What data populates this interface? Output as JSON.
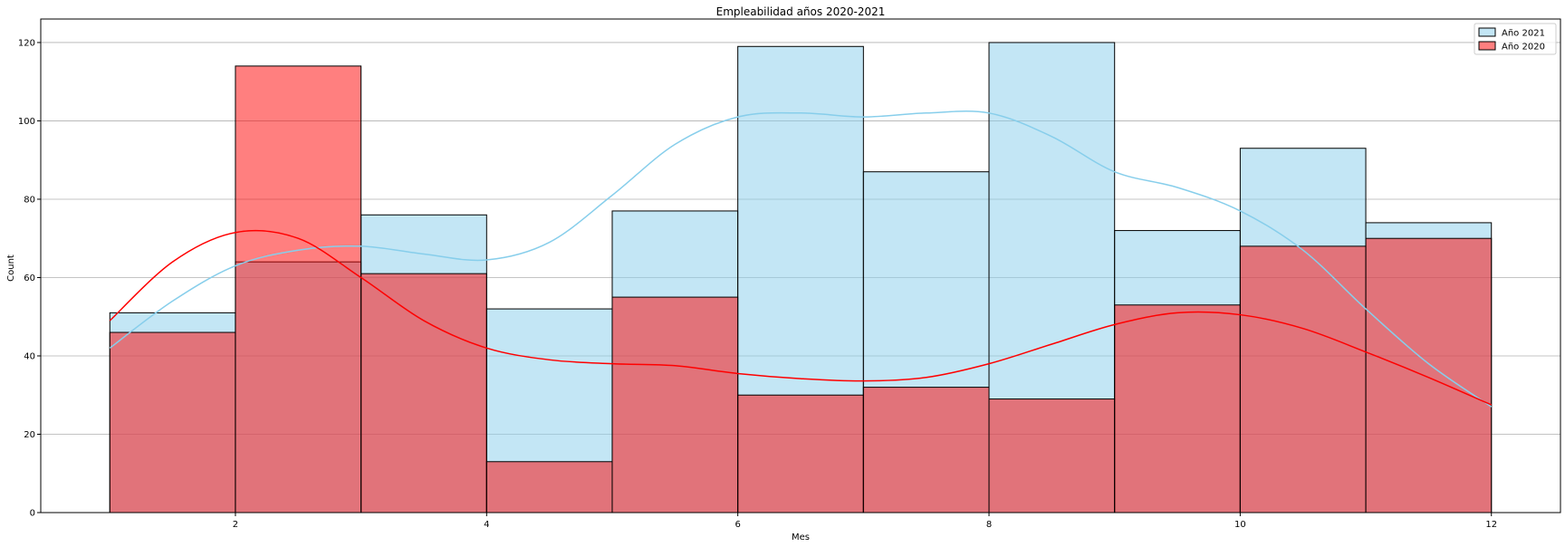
{
  "chart_data": {
    "type": "histogram",
    "title": "Empleabilidad años 2020-2021",
    "xlabel": "Mes",
    "ylabel": "Count",
    "xlim": [
      0.45,
      12.55
    ],
    "ylim": [
      0,
      126
    ],
    "xticks": [
      2,
      4,
      6,
      8,
      10,
      12
    ],
    "yticks": [
      0,
      20,
      40,
      60,
      80,
      100,
      120
    ],
    "grid": "y",
    "legend_position": "top-right",
    "bin_edges": [
      1,
      2,
      3,
      4,
      5,
      6,
      7,
      8,
      9,
      10,
      11,
      12
    ],
    "series": [
      {
        "name": "Año 2021",
        "color": "#87ceeb",
        "fill_opacity": 0.5,
        "values": [
          51,
          64,
          76,
          52,
          77,
          119,
          87,
          120,
          72,
          93,
          74
        ],
        "kde_x": [
          1,
          1.5,
          2,
          2.5,
          3,
          3.5,
          4,
          4.5,
          5,
          5.5,
          6,
          6.5,
          7,
          7.5,
          8,
          8.5,
          9,
          9.5,
          10,
          10.5,
          11,
          11.5,
          12
        ],
        "kde_y": [
          42,
          54,
          63,
          67,
          68,
          66,
          64.5,
          69,
          81,
          94,
          101,
          102,
          101,
          102,
          102,
          96,
          87,
          83,
          77,
          67,
          52,
          38,
          27
        ]
      },
      {
        "name": "Año 2020",
        "color": "#ff0000",
        "fill_opacity": 0.5,
        "values": [
          46,
          114,
          61,
          13,
          55,
          30,
          32,
          29,
          53,
          68,
          70
        ],
        "kde_x": [
          1,
          1.5,
          2,
          2.5,
          3,
          3.5,
          4,
          4.5,
          5,
          5.5,
          6,
          6.5,
          7,
          7.5,
          8,
          8.5,
          9,
          9.5,
          10,
          10.5,
          11,
          11.5,
          12
        ],
        "kde_y": [
          49,
          64,
          71.5,
          70,
          60,
          49,
          42,
          39,
          38,
          37.5,
          35.5,
          34.2,
          33.6,
          34.5,
          38,
          43,
          48,
          51,
          50.5,
          47,
          41,
          34.5,
          27.5
        ]
      }
    ]
  }
}
